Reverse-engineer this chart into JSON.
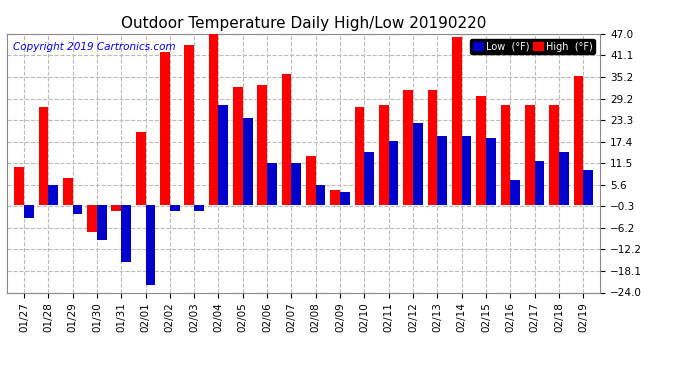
{
  "title": "Outdoor Temperature Daily High/Low 20190220",
  "copyright": "Copyright 2019 Cartronics.com",
  "legend_low": "Low  (°F)",
  "legend_high": "High  (°F)",
  "dates": [
    "01/27",
    "01/28",
    "01/29",
    "01/30",
    "01/31",
    "02/01",
    "02/02",
    "02/03",
    "02/04",
    "02/05",
    "02/06",
    "02/07",
    "02/08",
    "02/09",
    "02/10",
    "02/11",
    "02/12",
    "02/13",
    "02/14",
    "02/15",
    "02/16",
    "02/17",
    "02/18",
    "02/19"
  ],
  "high": [
    10.5,
    27.0,
    7.5,
    -7.5,
    -1.5,
    20.0,
    42.0,
    44.0,
    47.0,
    32.5,
    33.0,
    36.0,
    13.5,
    4.0,
    27.0,
    27.5,
    31.5,
    31.5,
    46.0,
    30.0,
    27.5,
    27.5,
    27.5,
    35.5
  ],
  "low": [
    -3.5,
    5.5,
    -2.5,
    -9.5,
    -15.5,
    -22.0,
    -1.5,
    -1.5,
    27.5,
    24.0,
    11.5,
    11.5,
    5.5,
    3.5,
    14.5,
    17.5,
    22.5,
    19.0,
    19.0,
    18.5,
    7.0,
    12.0,
    14.5,
    9.5
  ],
  "ylim_min": -24.0,
  "ylim_max": 47.0,
  "yticks": [
    47.0,
    41.1,
    35.2,
    29.2,
    23.3,
    17.4,
    11.5,
    5.6,
    -0.3,
    -6.2,
    -12.2,
    -18.1,
    -24.0
  ],
  "bar_width": 0.4,
  "high_color": "#ff0000",
  "low_color": "#0000cc",
  "background_color": "#ffffff",
  "grid_color": "#bbbbbb",
  "title_fontsize": 11,
  "tick_fontsize": 7.5,
  "copyright_fontsize": 7.5
}
